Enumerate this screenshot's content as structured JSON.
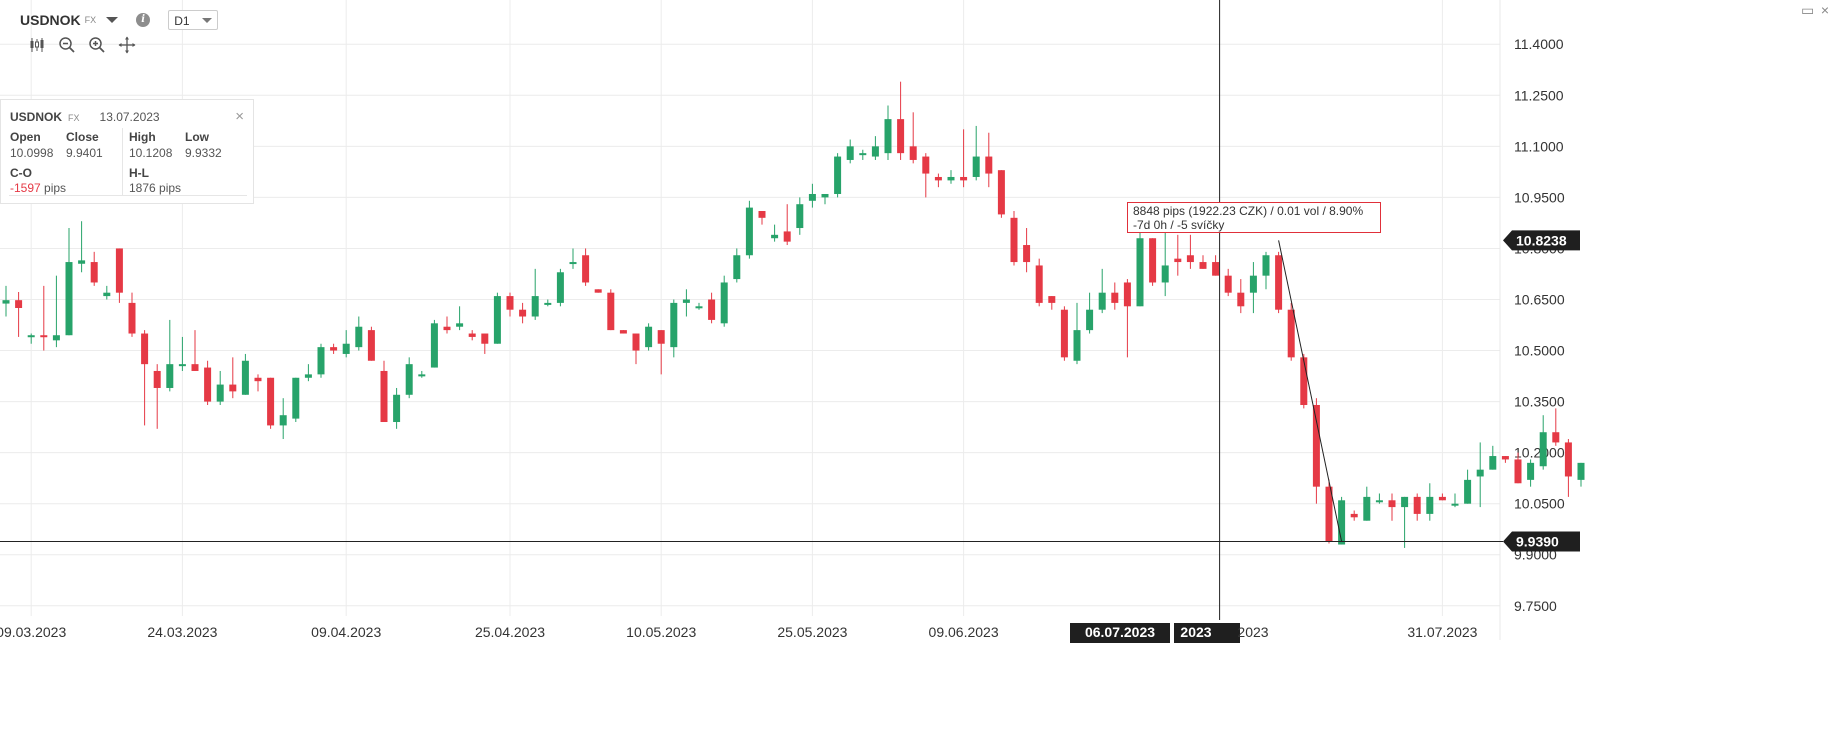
{
  "header": {
    "symbol": "USDNOK",
    "asset_class": "FX",
    "timeframe": "D1",
    "icons": [
      "candlestick-icon",
      "zoom-out-icon",
      "zoom-in-icon",
      "move-icon"
    ]
  },
  "info_panel": {
    "symbol": "USDNOK",
    "asset_class": "FX",
    "date": "13.07.2023",
    "open_label": "Open",
    "open": "10.0998",
    "close_label": "Close",
    "close": "9.9401",
    "high_label": "High",
    "high": "10.1208",
    "low_label": "Low",
    "low": "9.9332",
    "co_label": "C-O",
    "co_value": "-1597",
    "co_unit": "pips",
    "hl_label": "H-L",
    "hl_value": "1876 pips"
  },
  "measure": {
    "line1": "8848 pips (1922.23 CZK) / 0.01 vol / 8.90%",
    "line2": "-7d 0h / -5 svíčky"
  },
  "colors": {
    "up": "#27a36a",
    "down": "#e53945",
    "grid": "#ececec",
    "crosshair": "#222222"
  },
  "chart_data": {
    "type": "candlestick",
    "y_ticks": [
      "11.4000",
      "11.2500",
      "11.1000",
      "10.9500",
      "10.8000",
      "10.6500",
      "10.5000",
      "10.3500",
      "10.2000",
      "10.0500",
      "9.9000",
      "9.7500"
    ],
    "y_tick_values": [
      11.4,
      11.25,
      11.1,
      10.95,
      10.8,
      10.65,
      10.5,
      10.35,
      10.2,
      10.05,
      9.9,
      9.75
    ],
    "ylim": [
      9.72,
      11.53
    ],
    "x_ticks": [
      "09.03.2023",
      "24.03.2023",
      "09.04.2023",
      "25.04.2023",
      "10.05.2023",
      "25.05.2023",
      "09.06.2023",
      "31.07.2023"
    ],
    "x_tick_index": [
      2,
      14,
      27,
      40,
      52,
      64,
      76,
      114
    ],
    "crosshair_x_label": "06.07.2023",
    "partial_x_label": "2023",
    "partial_x_label_2": "2023",
    "crosshair_index": 96,
    "price_labels": {
      "measure_price": "10.8238",
      "crosshair_price": "9.9390"
    },
    "price_label_values": {
      "measure_price": 10.8238,
      "crosshair_price": 9.939
    },
    "candles": [
      [
        10.638,
        10.648,
        10.6,
        10.69
      ],
      [
        10.648,
        10.625,
        10.54,
        10.672
      ],
      [
        10.54,
        10.545,
        10.52,
        10.55
      ],
      [
        10.545,
        10.54,
        10.5,
        10.69
      ],
      [
        10.53,
        10.545,
        10.51,
        10.72
      ],
      [
        10.545,
        10.76,
        10.545,
        10.86
      ],
      [
        10.755,
        10.765,
        10.73,
        10.88
      ],
      [
        10.76,
        10.7,
        10.69,
        10.79
      ],
      [
        10.66,
        10.67,
        10.65,
        10.69
      ],
      [
        10.8,
        10.67,
        10.64,
        10.8
      ],
      [
        10.64,
        10.55,
        10.54,
        10.67
      ],
      [
        10.55,
        10.46,
        10.28,
        10.56
      ],
      [
        10.44,
        10.39,
        10.27,
        10.46
      ],
      [
        10.39,
        10.46,
        10.38,
        10.59
      ],
      [
        10.46,
        10.46,
        10.44,
        10.54
      ],
      [
        10.46,
        10.44,
        10.44,
        10.56
      ],
      [
        10.45,
        10.35,
        10.34,
        10.47
      ],
      [
        10.35,
        10.4,
        10.34,
        10.44
      ],
      [
        10.4,
        10.38,
        10.36,
        10.48
      ],
      [
        10.37,
        10.47,
        10.37,
        10.49
      ],
      [
        10.42,
        10.41,
        10.38,
        10.43
      ],
      [
        10.42,
        10.28,
        10.27,
        10.42
      ],
      [
        10.28,
        10.31,
        10.24,
        10.36
      ],
      [
        10.3,
        10.42,
        10.29,
        10.42
      ],
      [
        10.42,
        10.43,
        10.41,
        10.46
      ],
      [
        10.43,
        10.51,
        10.42,
        10.52
      ],
      [
        10.51,
        10.5,
        10.49,
        10.52
      ],
      [
        10.49,
        10.52,
        10.48,
        10.56
      ],
      [
        10.51,
        10.57,
        10.5,
        10.6
      ],
      [
        10.56,
        10.47,
        10.47,
        10.57
      ],
      [
        10.44,
        10.29,
        10.29,
        10.47
      ],
      [
        10.29,
        10.37,
        10.27,
        10.39
      ],
      [
        10.37,
        10.46,
        10.36,
        10.48
      ],
      [
        10.43,
        10.43,
        10.42,
        10.44
      ],
      [
        10.45,
        10.58,
        10.45,
        10.59
      ],
      [
        10.57,
        10.56,
        10.55,
        10.6
      ],
      [
        10.57,
        10.58,
        10.56,
        10.63
      ],
      [
        10.55,
        10.54,
        10.53,
        10.56
      ],
      [
        10.55,
        10.52,
        10.49,
        10.55
      ],
      [
        10.52,
        10.66,
        10.52,
        10.67
      ],
      [
        10.66,
        10.62,
        10.6,
        10.67
      ],
      [
        10.62,
        10.6,
        10.58,
        10.64
      ],
      [
        10.6,
        10.66,
        10.59,
        10.74
      ],
      [
        10.64,
        10.64,
        10.63,
        10.65
      ],
      [
        10.64,
        10.73,
        10.63,
        10.74
      ],
      [
        10.76,
        10.76,
        10.74,
        10.8
      ],
      [
        10.78,
        10.7,
        10.69,
        10.8
      ],
      [
        10.68,
        10.67,
        10.67,
        10.68
      ],
      [
        10.67,
        10.56,
        10.56,
        10.68
      ],
      [
        10.56,
        10.55,
        10.55,
        10.56
      ],
      [
        10.55,
        10.5,
        10.46,
        10.55
      ],
      [
        10.51,
        10.57,
        10.5,
        10.58
      ],
      [
        10.56,
        10.52,
        10.43,
        10.56
      ],
      [
        10.51,
        10.64,
        10.48,
        10.65
      ],
      [
        10.64,
        10.65,
        10.6,
        10.68
      ],
      [
        10.63,
        10.63,
        10.62,
        10.64
      ],
      [
        10.65,
        10.59,
        10.58,
        10.67
      ],
      [
        10.58,
        10.7,
        10.57,
        10.72
      ],
      [
        10.71,
        10.78,
        10.7,
        10.8
      ],
      [
        10.78,
        10.92,
        10.77,
        10.94
      ],
      [
        10.91,
        10.89,
        10.87,
        10.91
      ],
      [
        10.83,
        10.84,
        10.82,
        10.87
      ],
      [
        10.85,
        10.82,
        10.81,
        10.93
      ],
      [
        10.86,
        10.93,
        10.84,
        10.95
      ],
      [
        10.94,
        10.96,
        10.92,
        10.99
      ],
      [
        10.95,
        10.96,
        10.93,
        10.96
      ],
      [
        10.96,
        11.07,
        10.95,
        11.08
      ],
      [
        11.06,
        11.1,
        11.05,
        11.12
      ],
      [
        11.08,
        11.08,
        11.06,
        11.09
      ],
      [
        11.07,
        11.1,
        11.06,
        11.13
      ],
      [
        11.08,
        11.18,
        11.06,
        11.22
      ],
      [
        11.18,
        11.08,
        11.06,
        11.29
      ],
      [
        11.1,
        11.06,
        11.05,
        11.2
      ],
      [
        11.07,
        11.02,
        10.95,
        11.08
      ],
      [
        11.01,
        11.0,
        10.98,
        11.02
      ],
      [
        11.0,
        11.01,
        10.99,
        11.03
      ],
      [
        11.01,
        11.0,
        10.98,
        11.15
      ],
      [
        11.01,
        11.07,
        11.0,
        11.16
      ],
      [
        11.07,
        11.02,
        10.98,
        11.14
      ],
      [
        11.03,
        10.9,
        10.89,
        11.03
      ],
      [
        10.89,
        10.76,
        10.75,
        10.91
      ],
      [
        10.81,
        10.76,
        10.73,
        10.86
      ],
      [
        10.75,
        10.64,
        10.63,
        10.77
      ],
      [
        10.66,
        10.64,
        10.62,
        10.66
      ],
      [
        10.62,
        10.48,
        10.47,
        10.63
      ],
      [
        10.47,
        10.56,
        10.46,
        10.64
      ],
      [
        10.56,
        10.62,
        10.55,
        10.67
      ],
      [
        10.62,
        10.67,
        10.61,
        10.74
      ],
      [
        10.67,
        10.64,
        10.62,
        10.7
      ],
      [
        10.7,
        10.63,
        10.48,
        10.71
      ],
      [
        10.63,
        10.83,
        10.63,
        10.91
      ],
      [
        10.83,
        10.7,
        10.69,
        10.83
      ],
      [
        10.7,
        10.75,
        10.66,
        10.85
      ],
      [
        10.77,
        10.76,
        10.72,
        10.84
      ],
      [
        10.78,
        10.76,
        10.74,
        10.84
      ],
      [
        10.76,
        10.74,
        10.74,
        10.78
      ],
      [
        10.76,
        10.72,
        10.72,
        10.78
      ],
      [
        10.72,
        10.67,
        10.66,
        10.74
      ],
      [
        10.67,
        10.63,
        10.61,
        10.71
      ],
      [
        10.67,
        10.72,
        10.61,
        10.76
      ],
      [
        10.72,
        10.78,
        10.68,
        10.79
      ],
      [
        10.78,
        10.62,
        10.61,
        10.79
      ],
      [
        10.62,
        10.48,
        10.47,
        10.64
      ],
      [
        10.48,
        10.34,
        10.33,
        10.49
      ],
      [
        10.34,
        10.1,
        10.05,
        10.36
      ],
      [
        10.1,
        9.94,
        9.933,
        10.121
      ],
      [
        9.93,
        10.06,
        9.93,
        10.07
      ],
      [
        10.02,
        10.01,
        10.0,
        10.03
      ],
      [
        10.0,
        10.07,
        10.0,
        10.1
      ],
      [
        10.06,
        10.06,
        10.05,
        10.08
      ],
      [
        10.06,
        10.04,
        10.0,
        10.08
      ],
      [
        10.04,
        10.07,
        9.92,
        10.07
      ],
      [
        10.07,
        10.02,
        10.0,
        10.08
      ],
      [
        10.02,
        10.07,
        10.0,
        10.11
      ],
      [
        10.07,
        10.06,
        10.06,
        10.08
      ],
      [
        10.05,
        10.05,
        10.04,
        10.08
      ],
      [
        10.05,
        10.12,
        10.05,
        10.15
      ],
      [
        10.13,
        10.15,
        10.04,
        10.23
      ],
      [
        10.15,
        10.19,
        10.15,
        10.22
      ],
      [
        10.19,
        10.18,
        10.17,
        10.19
      ],
      [
        10.18,
        10.11,
        10.11,
        10.2
      ],
      [
        10.12,
        10.17,
        10.1,
        10.18
      ],
      [
        10.16,
        10.26,
        10.15,
        10.31
      ],
      [
        10.26,
        10.23,
        10.22,
        10.33
      ],
      [
        10.23,
        10.13,
        10.07,
        10.24
      ],
      [
        10.12,
        10.17,
        10.1,
        10.17
      ]
    ],
    "grid": true
  }
}
